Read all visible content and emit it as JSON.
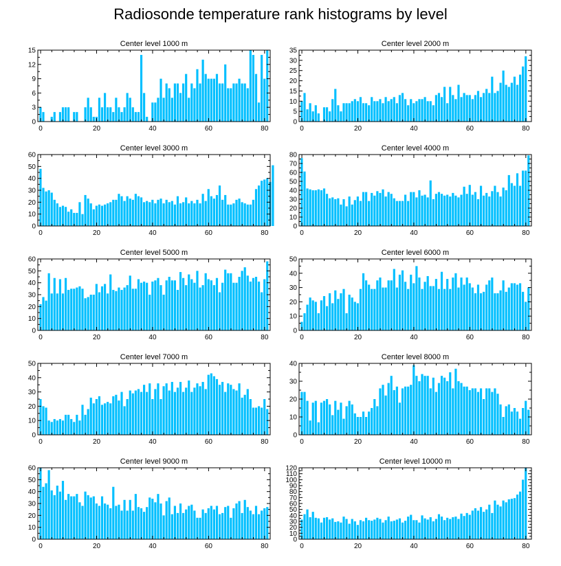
{
  "title": "Radiosonde temperature rank histograms by level",
  "colors": {
    "bar": "#00BFFF",
    "axis": "#000000"
  },
  "chart_data": [
    {
      "type": "bar",
      "title": "Center level 1000 m",
      "xlim": [
        -1,
        82
      ],
      "ylim": [
        0,
        15
      ],
      "xticks": [
        0,
        20,
        40,
        60,
        80
      ],
      "yticks": [
        0,
        3,
        6,
        9,
        12,
        15
      ],
      "xlabel": "",
      "ylabel": "",
      "values": [
        3,
        2,
        0,
        0,
        1,
        2,
        0,
        2,
        3,
        3,
        3,
        0,
        2,
        2,
        0,
        0,
        3,
        5,
        3,
        1,
        1,
        5,
        3,
        6,
        3,
        3,
        2,
        5,
        3,
        2,
        3,
        6,
        5,
        3,
        2,
        2,
        14,
        6,
        1,
        0,
        4,
        4,
        5,
        9,
        5,
        8,
        7,
        5,
        8,
        8,
        6,
        8,
        10,
        5,
        8,
        7,
        11,
        8,
        13,
        10,
        9,
        9,
        9,
        10,
        8,
        8,
        12,
        7,
        7,
        8,
        8,
        9,
        8,
        8,
        7,
        15,
        14,
        10,
        4,
        14,
        9,
        15
      ]
    },
    {
      "type": "bar",
      "title": "Center level 2000 m",
      "xlim": [
        -1,
        82
      ],
      "ylim": [
        0,
        35
      ],
      "xticks": [
        0,
        20,
        40,
        60,
        80
      ],
      "yticks": [
        0,
        5,
        10,
        15,
        20,
        25,
        30,
        35
      ],
      "xlabel": "",
      "ylabel": "",
      "values": [
        10,
        14,
        6,
        9,
        5,
        8,
        4,
        0,
        7,
        7,
        5,
        11,
        16,
        8,
        5,
        9,
        9,
        9,
        10,
        11,
        10,
        12,
        9,
        9,
        8,
        12,
        10,
        10,
        11,
        9,
        12,
        10,
        11,
        12,
        9,
        13,
        14,
        11,
        8,
        11,
        9,
        10,
        11,
        11,
        12,
        10,
        10,
        8,
        13,
        14,
        12,
        17,
        9,
        17,
        13,
        11,
        18,
        12,
        14,
        13,
        13,
        11,
        13,
        15,
        12,
        14,
        16,
        14,
        22,
        14,
        15,
        19,
        25,
        18,
        17,
        19,
        22,
        18,
        23,
        27,
        32
      ]
    },
    {
      "type": "bar",
      "title": "Center level 3000 m",
      "xlim": [
        -1,
        82
      ],
      "ylim": [
        0,
        60
      ],
      "xticks": [
        0,
        20,
        40,
        60,
        80
      ],
      "yticks": [
        0,
        10,
        20,
        30,
        40,
        50,
        60
      ],
      "xlabel": "",
      "ylabel": "",
      "values": [
        48,
        32,
        29,
        30,
        28,
        22,
        19,
        16,
        17,
        16,
        12,
        14,
        11,
        11,
        20,
        10,
        26,
        23,
        19,
        14,
        17,
        18,
        17,
        18,
        19,
        20,
        22,
        22,
        27,
        25,
        21,
        25,
        23,
        22,
        27,
        25,
        24,
        20,
        21,
        20,
        22,
        19,
        22,
        23,
        19,
        22,
        20,
        21,
        18,
        25,
        19,
        20,
        24,
        19,
        21,
        19,
        22,
        19,
        27,
        21,
        31,
        25,
        23,
        26,
        34,
        22,
        26,
        18,
        18,
        19,
        22,
        23,
        20,
        19,
        18,
        18,
        22,
        31,
        34,
        38,
        39,
        40,
        37,
        51
      ]
    },
    {
      "type": "bar",
      "title": "Center level 4000 m",
      "xlim": [
        -1,
        82
      ],
      "ylim": [
        0,
        80
      ],
      "xticks": [
        0,
        20,
        40,
        60,
        80
      ],
      "yticks": [
        0,
        10,
        20,
        30,
        40,
        50,
        60,
        70,
        80
      ],
      "xlabel": "",
      "ylabel": "",
      "values": [
        76,
        61,
        42,
        41,
        40,
        40,
        41,
        40,
        42,
        36,
        31,
        32,
        30,
        31,
        24,
        30,
        22,
        33,
        24,
        29,
        33,
        28,
        38,
        38,
        28,
        37,
        34,
        39,
        37,
        41,
        33,
        38,
        36,
        31,
        28,
        28,
        28,
        35,
        28,
        38,
        38,
        32,
        40,
        34,
        35,
        32,
        51,
        30,
        36,
        38,
        36,
        34,
        35,
        33,
        37,
        34,
        32,
        35,
        44,
        36,
        46,
        35,
        38,
        30,
        45,
        34,
        37,
        33,
        39,
        45,
        38,
        33,
        43,
        40,
        57,
        48,
        45,
        59,
        45,
        62,
        62,
        79
      ]
    },
    {
      "type": "bar",
      "title": "Center level 5000 m",
      "xlim": [
        -1,
        82
      ],
      "ylim": [
        0,
        60
      ],
      "xticks": [
        0,
        20,
        40,
        60,
        80
      ],
      "yticks": [
        0,
        10,
        20,
        30,
        40,
        50,
        60
      ],
      "xlabel": "",
      "ylabel": "",
      "values": [
        22,
        28,
        25,
        48,
        31,
        44,
        31,
        43,
        31,
        44,
        34,
        35,
        35,
        36,
        37,
        35,
        27,
        28,
        30,
        30,
        39,
        32,
        37,
        39,
        31,
        47,
        34,
        33,
        36,
        34,
        36,
        38,
        46,
        35,
        35,
        43,
        40,
        41,
        40,
        30,
        41,
        42,
        44,
        38,
        30,
        42,
        45,
        42,
        42,
        34,
        49,
        44,
        38,
        47,
        43,
        40,
        50,
        36,
        38,
        48,
        43,
        42,
        38,
        44,
        32,
        40,
        51,
        48,
        48,
        40,
        40,
        45,
        50,
        53,
        46,
        41,
        44,
        45,
        41,
        32,
        43,
        58
      ]
    },
    {
      "type": "bar",
      "title": "Center level 6000 m",
      "xlim": [
        -1,
        82
      ],
      "ylim": [
        0,
        50
      ],
      "xticks": [
        0,
        20,
        40,
        60,
        80
      ],
      "yticks": [
        0,
        10,
        20,
        30,
        40,
        50
      ],
      "xlabel": "",
      "ylabel": "",
      "values": [
        6,
        12,
        18,
        23,
        21,
        20,
        12,
        21,
        24,
        17,
        26,
        19,
        28,
        22,
        26,
        29,
        12,
        25,
        23,
        20,
        19,
        29,
        40,
        35,
        32,
        29,
        29,
        35,
        37,
        30,
        30,
        35,
        35,
        43,
        30,
        39,
        42,
        34,
        29,
        39,
        33,
        45,
        37,
        29,
        34,
        38,
        31,
        31,
        36,
        29,
        41,
        29,
        36,
        29,
        37,
        40,
        30,
        37,
        32,
        37,
        33,
        30,
        26,
        32,
        26,
        27,
        32,
        35,
        37,
        26,
        26,
        28,
        35,
        27,
        30,
        33,
        33,
        32,
        33,
        27,
        20,
        30
      ]
    },
    {
      "type": "bar",
      "title": "Center level 7000 m",
      "xlim": [
        -1,
        82
      ],
      "ylim": [
        0,
        50
      ],
      "xticks": [
        0,
        20,
        40,
        60,
        80
      ],
      "yticks": [
        0,
        10,
        20,
        30,
        40,
        50
      ],
      "xlabel": "",
      "ylabel": "",
      "values": [
        25,
        20,
        19,
        10,
        9,
        11,
        10,
        11,
        10,
        14,
        14,
        11,
        9,
        14,
        10,
        21,
        14,
        18,
        26,
        22,
        25,
        27,
        21,
        22,
        23,
        22,
        27,
        28,
        24,
        30,
        20,
        25,
        31,
        29,
        31,
        32,
        30,
        35,
        30,
        36,
        25,
        32,
        36,
        25,
        34,
        36,
        31,
        37,
        30,
        33,
        37,
        30,
        33,
        38,
        30,
        33,
        36,
        34,
        37,
        32,
        42,
        43,
        41,
        39,
        35,
        37,
        30,
        36,
        35,
        32,
        31,
        36,
        26,
        28,
        32,
        25,
        19,
        19,
        20,
        19,
        25,
        18
      ]
    },
    {
      "type": "bar",
      "title": "Center level 8000 m",
      "xlim": [
        -1,
        82
      ],
      "ylim": [
        0,
        40
      ],
      "xticks": [
        0,
        20,
        40,
        60,
        80
      ],
      "yticks": [
        0,
        10,
        20,
        30,
        40
      ],
      "xlabel": "",
      "ylabel": "",
      "values": [
        24,
        24,
        19,
        8,
        18,
        19,
        7,
        18,
        19,
        20,
        17,
        11,
        19,
        14,
        18,
        9,
        16,
        19,
        17,
        12,
        10,
        10,
        13,
        10,
        13,
        15,
        20,
        16,
        26,
        28,
        22,
        29,
        33,
        25,
        27,
        18,
        26,
        27,
        27,
        28,
        39,
        33,
        30,
        34,
        33,
        33,
        26,
        32,
        24,
        29,
        33,
        32,
        30,
        35,
        26,
        37,
        30,
        29,
        27,
        27,
        25,
        26,
        26,
        24,
        26,
        20,
        26,
        26,
        24,
        26,
        23,
        17,
        10,
        16,
        17,
        13,
        15,
        13,
        9,
        15,
        19,
        14
      ]
    },
    {
      "type": "bar",
      "title": "Center level 9000 m",
      "xlim": [
        -1,
        82
      ],
      "ylim": [
        0,
        60
      ],
      "xticks": [
        0,
        20,
        40,
        60,
        80
      ],
      "yticks": [
        0,
        10,
        20,
        30,
        40,
        50,
        60
      ],
      "xlabel": "",
      "ylabel": "",
      "values": [
        60,
        44,
        47,
        58,
        41,
        37,
        45,
        40,
        49,
        33,
        38,
        36,
        36,
        38,
        31,
        28,
        40,
        37,
        35,
        36,
        30,
        28,
        36,
        30,
        29,
        26,
        44,
        28,
        29,
        24,
        33,
        24,
        33,
        24,
        38,
        27,
        26,
        23,
        27,
        35,
        34,
        31,
        38,
        30,
        20,
        32,
        35,
        21,
        28,
        22,
        30,
        22,
        25,
        28,
        29,
        24,
        18,
        18,
        25,
        22,
        26,
        28,
        25,
        28,
        21,
        22,
        27,
        28,
        18,
        26,
        30,
        32,
        22,
        33,
        27,
        24,
        21,
        28,
        21,
        24,
        26,
        27
      ]
    },
    {
      "type": "bar",
      "title": "Center level 10000 m",
      "xlim": [
        -1,
        82
      ],
      "ylim": [
        0,
        120
      ],
      "xticks": [
        0,
        20,
        40,
        60,
        80
      ],
      "yticks": [
        0,
        10,
        20,
        30,
        40,
        50,
        60,
        70,
        80,
        90,
        100,
        110,
        120
      ],
      "xlabel": "",
      "ylabel": "",
      "values": [
        33,
        42,
        50,
        37,
        46,
        36,
        35,
        28,
        36,
        37,
        33,
        35,
        29,
        30,
        28,
        38,
        34,
        26,
        34,
        30,
        24,
        32,
        30,
        36,
        32,
        31,
        33,
        36,
        34,
        28,
        32,
        38,
        30,
        31,
        33,
        35,
        28,
        31,
        38,
        41,
        32,
        32,
        28,
        40,
        35,
        33,
        37,
        30,
        34,
        42,
        38,
        32,
        36,
        34,
        37,
        38,
        34,
        43,
        39,
        44,
        41,
        48,
        52,
        48,
        54,
        46,
        50,
        58,
        44,
        65,
        58,
        55,
        65,
        62,
        67,
        68,
        69,
        75,
        80,
        100,
        120
      ]
    }
  ]
}
